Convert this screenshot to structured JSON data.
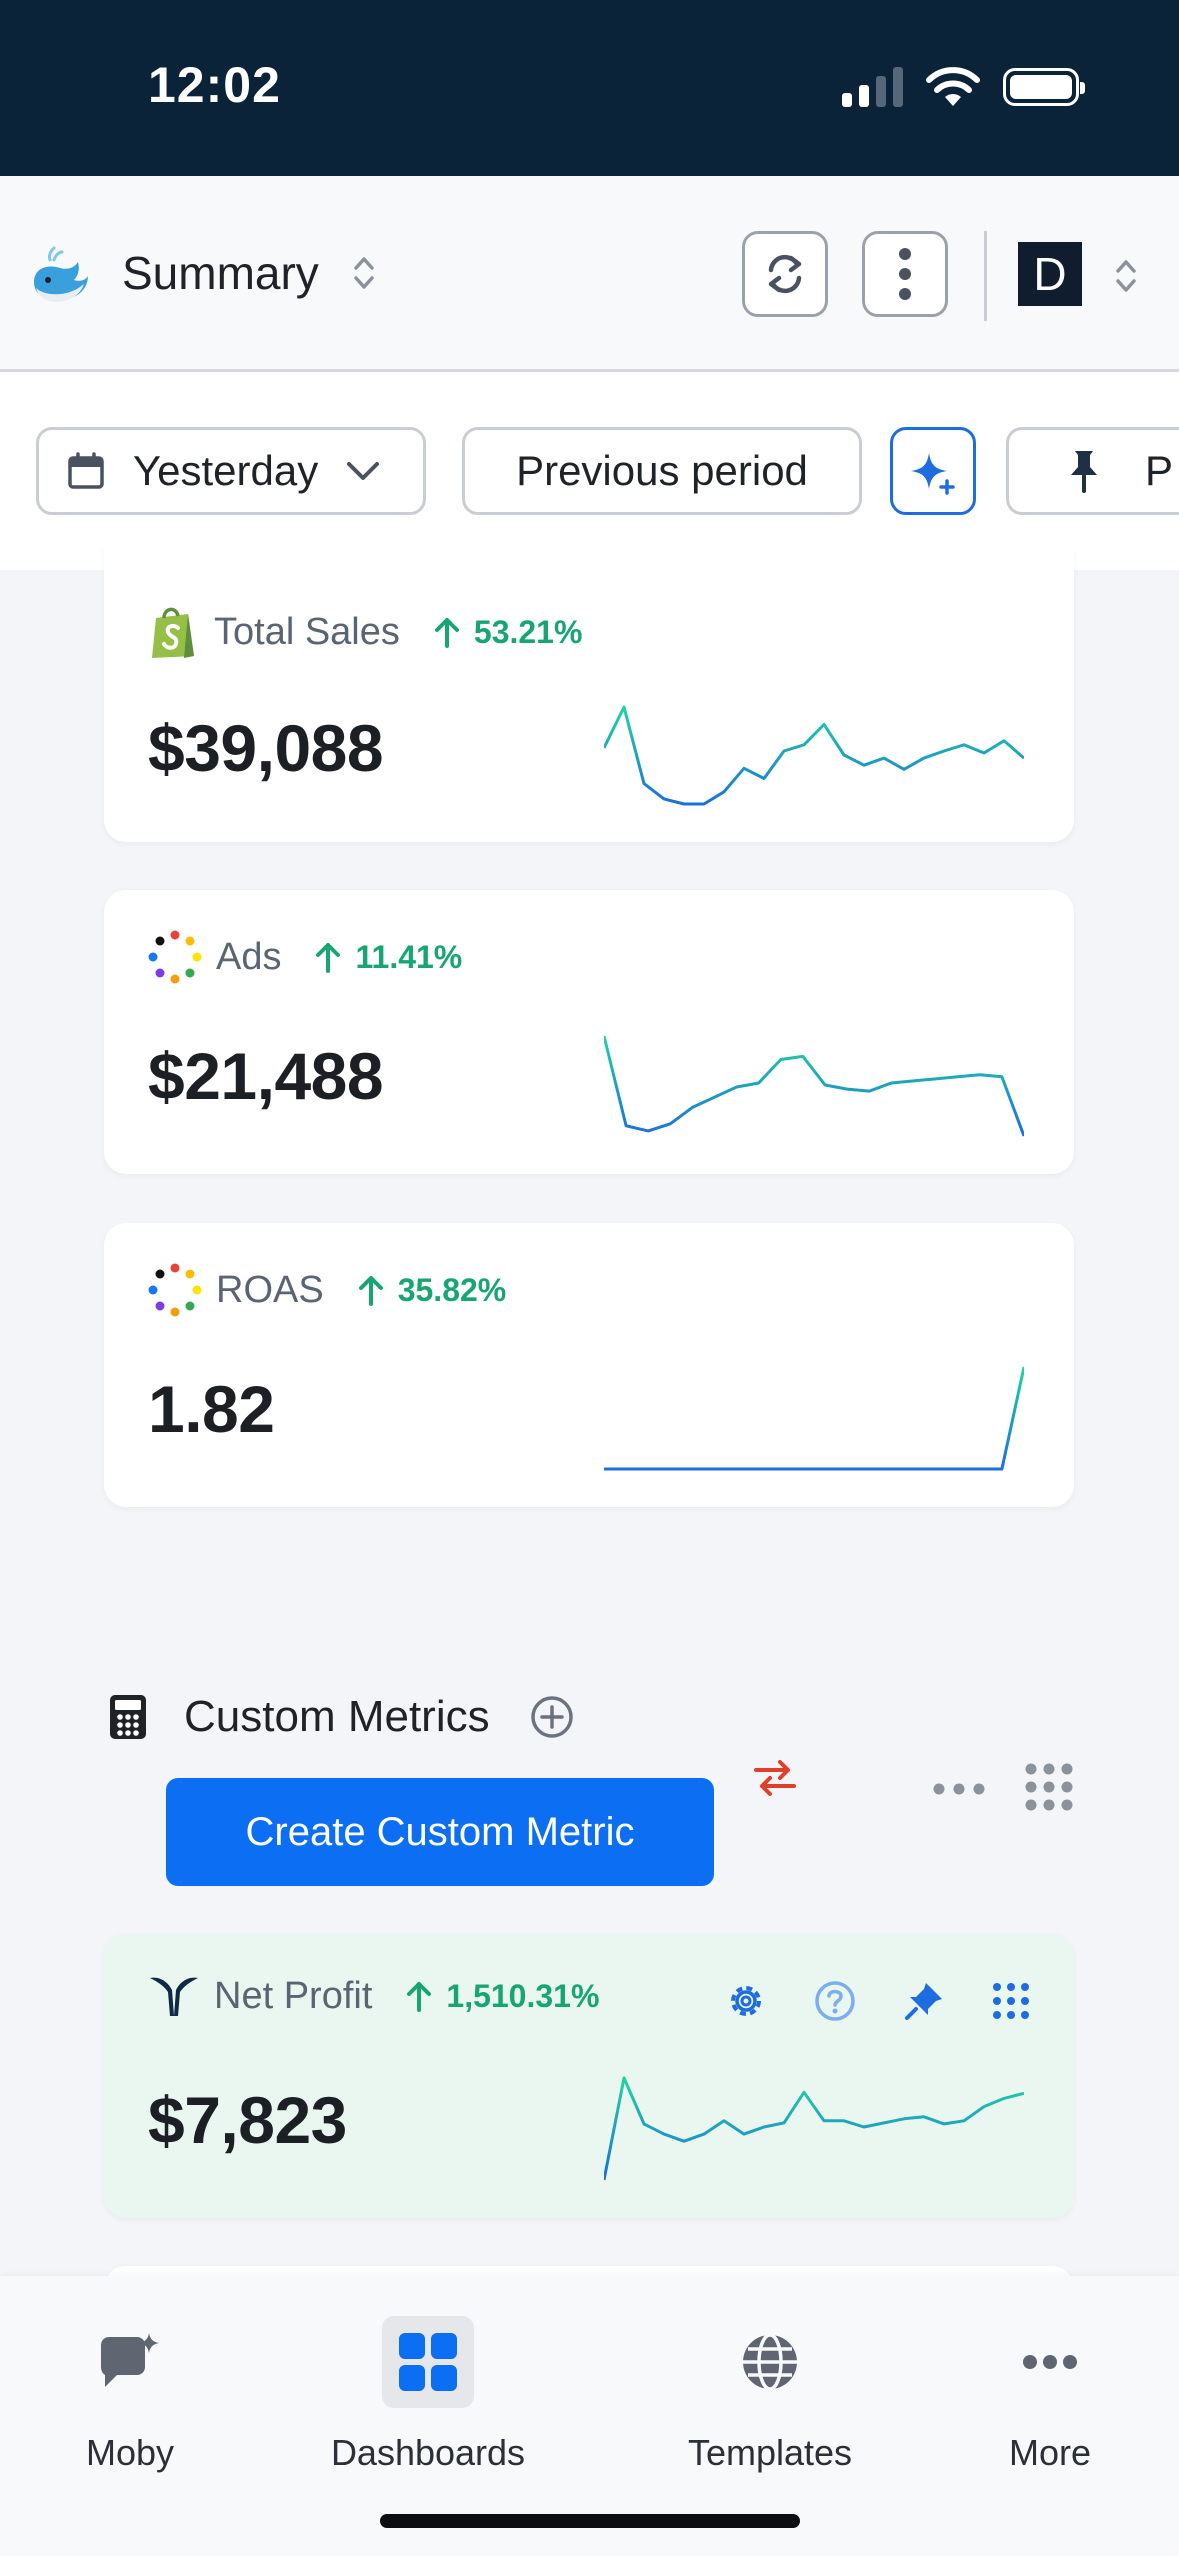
{
  "status_bar": {
    "time": "12:02"
  },
  "header": {
    "title": "Summary",
    "avatar_letter": "D"
  },
  "filters": {
    "date_range": "Yesterday",
    "comparison": "Previous period",
    "pin_label": "P"
  },
  "cards": [
    {
      "label": "Total Sales",
      "change": "53.21%",
      "value": "$39,088",
      "icon": "shopify-icon",
      "trend": [
        0.55,
        0.95,
        0.2,
        0.05,
        0.0,
        0.0,
        0.12,
        0.35,
        0.25,
        0.52,
        0.58,
        0.78,
        0.48,
        0.38,
        0.45,
        0.34,
        0.45,
        0.52,
        0.58,
        0.5,
        0.62,
        0.45
      ]
    },
    {
      "label": "Ads",
      "change": "11.41%",
      "value": "$21,488",
      "icon": "ads-dots-icon",
      "trend": [
        0.98,
        0.1,
        0.05,
        0.12,
        0.28,
        0.38,
        0.48,
        0.52,
        0.75,
        0.78,
        0.5,
        0.46,
        0.44,
        0.52,
        0.54,
        0.56,
        0.58,
        0.6,
        0.58,
        0.0
      ]
    },
    {
      "label": "ROAS",
      "change": "35.82%",
      "value": "1.82",
      "icon": "ads-dots-icon",
      "trend": [
        0.0,
        0.0,
        0.0,
        0.0,
        0.0,
        0.0,
        0.0,
        0.0,
        0.0,
        0.0,
        0.0,
        0.0,
        0.0,
        0.0,
        0.0,
        0.0,
        0.0,
        0.0,
        0.0,
        1.0
      ]
    }
  ],
  "custom_metrics": {
    "title": "Custom Metrics",
    "create_button": "Create Custom Metric",
    "card": {
      "label": "Net Profit",
      "change": "1,510.31%",
      "value": "$7,823",
      "icon": "triple-whale-icon",
      "trend": [
        0.0,
        1.0,
        0.55,
        0.45,
        0.38,
        0.45,
        0.58,
        0.45,
        0.52,
        0.56,
        0.86,
        0.58,
        0.58,
        0.52,
        0.56,
        0.6,
        0.62,
        0.55,
        0.58,
        0.72,
        0.8,
        0.85
      ]
    }
  },
  "tabs": [
    {
      "label": "Moby",
      "icon": "moby-chat-icon"
    },
    {
      "label": "Dashboards",
      "icon": "dashboards-grid-icon"
    },
    {
      "label": "Templates",
      "icon": "globe-icon"
    },
    {
      "label": "More",
      "icon": "more-dots-icon"
    }
  ],
  "colors": {
    "accent": "#0b6ef3",
    "positive": "#17a673",
    "sparkline_start": "#1a6fe0",
    "sparkline_end": "#22d3a0",
    "status_bar_bg": "#0a2338"
  }
}
